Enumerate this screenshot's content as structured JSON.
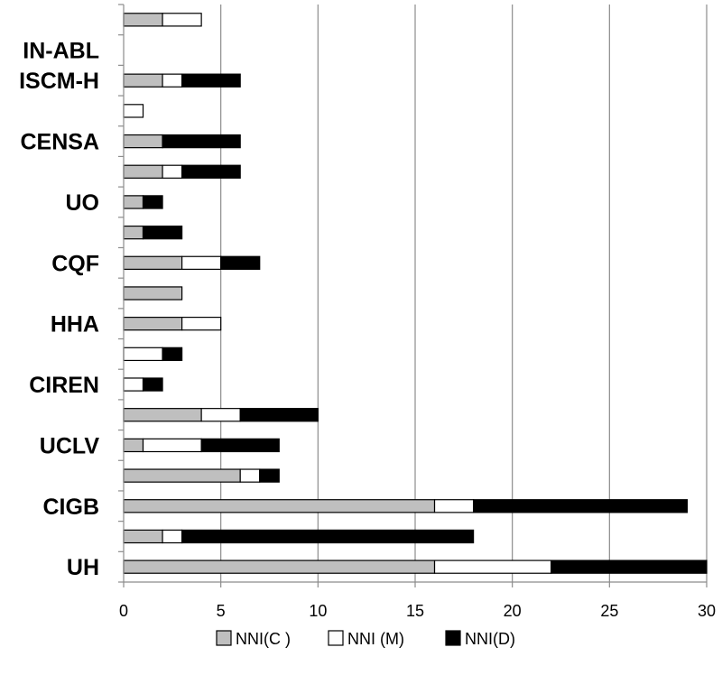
{
  "chart_data": {
    "type": "bar",
    "orientation": "horizontal",
    "stacked": true,
    "categories": [
      "UH",
      "",
      "CIGB",
      "",
      "UCLV",
      "",
      "CIREN",
      "",
      "HHA",
      "",
      "CQF",
      "",
      "UO",
      "",
      "CENSA",
      "",
      "ISCM-H",
      "IN-ABL",
      ""
    ],
    "series": [
      {
        "name": "NNI(C )",
        "values": [
          16,
          2,
          16,
          6,
          1,
          4,
          0,
          0,
          3,
          3,
          3,
          1,
          1,
          2,
          2,
          0,
          2,
          0,
          2
        ],
        "color": "#bfbfbf"
      },
      {
        "name": "NNI (M)",
        "values": [
          6,
          1,
          2,
          1,
          3,
          2,
          1,
          2,
          2,
          0,
          2,
          0,
          0,
          1,
          0,
          1,
          1,
          0,
          2
        ],
        "color": "#ffffff"
      },
      {
        "name": "NNI(D)",
        "values": [
          8,
          15,
          11,
          1,
          4,
          4,
          1,
          1,
          0,
          0,
          2,
          2,
          1,
          3,
          4,
          0,
          3,
          0,
          0
        ],
        "color": "#000000"
      }
    ],
    "xlim": [
      0,
      30
    ],
    "xticks": [
      0,
      5,
      10,
      15,
      20,
      25,
      30
    ],
    "grid": "vertical",
    "legend_position": "bottom",
    "title": "",
    "xlabel": "",
    "ylabel": ""
  }
}
